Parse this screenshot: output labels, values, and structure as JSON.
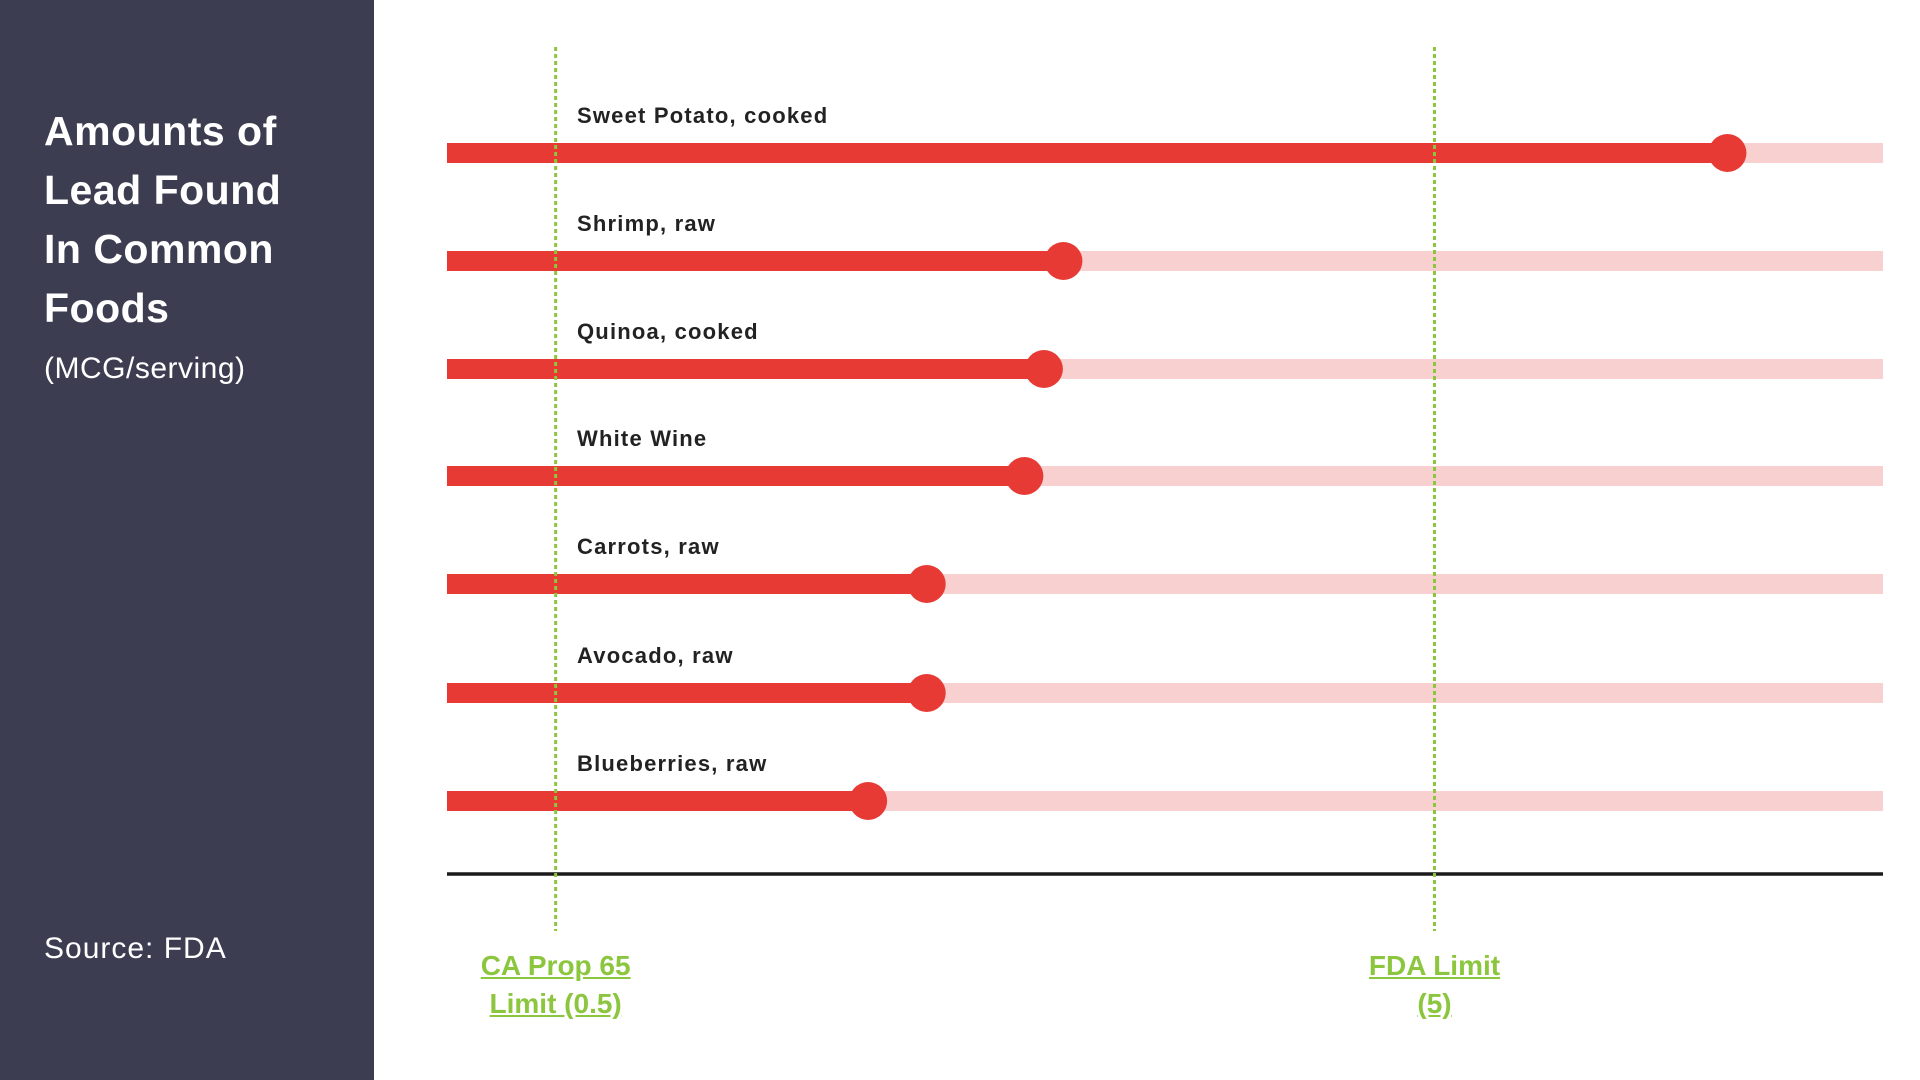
{
  "sidebar": {
    "title_lines": [
      "Amounts of",
      "Lead Found",
      "In Common",
      "Foods"
    ],
    "subtitle": "(MCG/serving)",
    "source": "Source: FDA"
  },
  "colors": {
    "sidebar_bg": "#3d3d52",
    "value_bar": "#e83a35",
    "track_bar": "#f8d0cf",
    "reference_line": "#8cc63f",
    "axis": "#1a1a1a"
  },
  "chart_data": {
    "type": "bar",
    "orientation": "horizontal",
    "style": "lollipop",
    "categories": [
      "Sweet Potato, cooked",
      "Shrimp, raw",
      "Quinoa, cooked",
      "White Wine",
      "Carrots, raw",
      "Avocado, raw",
      "Blueberries, raw"
    ],
    "values": [
      6.5,
      3.1,
      3.0,
      2.9,
      2.4,
      2.4,
      2.1
    ],
    "unit": "MCG/serving",
    "xlim": [
      0,
      7.3
    ],
    "grid": false,
    "reference_lines": [
      {
        "value": 0.5,
        "label_lines": [
          "CA Prop 65",
          "Limit (0.5)"
        ]
      },
      {
        "value": 5,
        "label_lines": [
          "FDA Limit ",
          "(5)"
        ]
      }
    ]
  }
}
